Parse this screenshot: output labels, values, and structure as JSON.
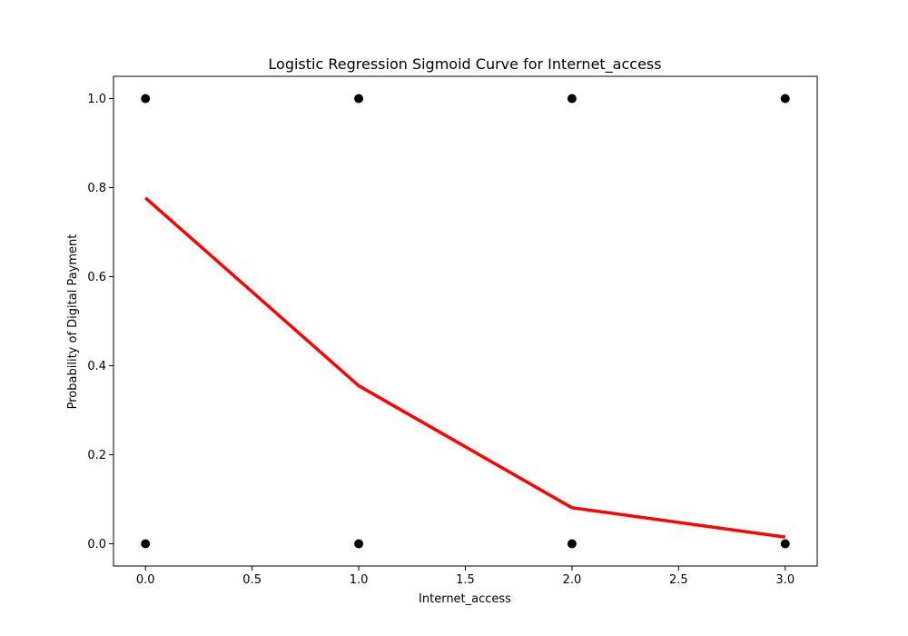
{
  "chart_data": {
    "type": "scatter",
    "title": "Logistic Regression Sigmoid Curve for Internet_access",
    "xlabel": "Internet_access",
    "ylabel": "Probability of Digital Payment",
    "xlim": [
      -0.15,
      3.15
    ],
    "ylim": [
      -0.05,
      1.05
    ],
    "xticks": [
      0.0,
      0.5,
      1.0,
      1.5,
      2.0,
      2.5,
      3.0
    ],
    "xtick_labels": [
      "0.0",
      "0.5",
      "1.0",
      "1.5",
      "2.0",
      "2.5",
      "3.0"
    ],
    "yticks": [
      0.0,
      0.2,
      0.4,
      0.6,
      0.8,
      1.0
    ],
    "ytick_labels": [
      "0.0",
      "0.2",
      "0.4",
      "0.6",
      "0.8",
      "1.0"
    ],
    "grid": false,
    "series": [
      {
        "type": "scatter",
        "color": "#000000",
        "points": [
          {
            "x": 0,
            "y": 1
          },
          {
            "x": 1,
            "y": 1
          },
          {
            "x": 2,
            "y": 1
          },
          {
            "x": 3,
            "y": 1
          },
          {
            "x": 0,
            "y": 0
          },
          {
            "x": 1,
            "y": 0
          },
          {
            "x": 2,
            "y": 0
          },
          {
            "x": 3,
            "y": 0
          }
        ]
      },
      {
        "type": "line",
        "color": "#ff0000",
        "x": [
          0,
          1,
          2,
          3
        ],
        "y": [
          0.777,
          0.355,
          0.081,
          0.015
        ]
      }
    ]
  }
}
